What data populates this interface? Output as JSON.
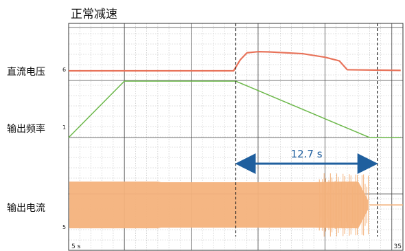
{
  "title": "正常减速",
  "chart_data": {
    "type": "line",
    "title": "正常减速",
    "x_range": [
      5,
      35
    ],
    "x_tick_labels": [
      "5 s",
      "35"
    ],
    "grid": true,
    "series": [
      {
        "name": "直流电压",
        "marker": "6",
        "color": "#e8735a",
        "points": [
          [
            5,
            0
          ],
          [
            19.8,
            0
          ],
          [
            20.4,
            0.5
          ],
          [
            21,
            0.82
          ],
          [
            22,
            0.87
          ],
          [
            23,
            0.86
          ],
          [
            26,
            0.78
          ],
          [
            28,
            0.62
          ],
          [
            29.3,
            0.45
          ],
          [
            30,
            0.05
          ],
          [
            34.8,
            0.02
          ]
        ]
      },
      {
        "name": "输出频率",
        "marker": "1",
        "color": "#6cb84a",
        "points": [
          [
            5,
            0
          ],
          [
            10,
            1
          ],
          [
            13.5,
            1
          ],
          [
            20,
            1
          ],
          [
            32,
            0
          ],
          [
            34.8,
            0
          ]
        ]
      },
      {
        "name": "输出电流",
        "marker": "5",
        "color": "#f4b27c",
        "envelope": [
          [
            5,
            1.0
          ],
          [
            13,
            1.0
          ],
          [
            13.3,
            0.97
          ],
          [
            27,
            0.97
          ],
          [
            29.7,
            1.0
          ],
          [
            31,
            1.0
          ],
          [
            32,
            0.08
          ],
          [
            34.8,
            0.08
          ]
        ]
      }
    ],
    "annotation": {
      "label": "12.7 s",
      "from": 20,
      "to": 32.7
    }
  },
  "labels": {
    "dc_voltage": "直流电压",
    "output_freq": "输出频率",
    "output_current": "输出电流"
  }
}
